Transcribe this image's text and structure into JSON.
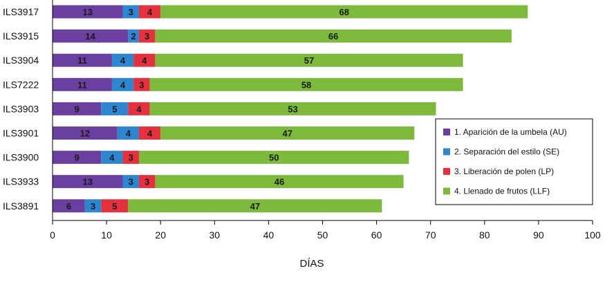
{
  "chart_data": {
    "type": "bar",
    "orientation": "horizontal",
    "stacked": true,
    "title": "",
    "xlabel": "DÍAS",
    "ylabel": "",
    "xlim": [
      0,
      100
    ],
    "xticks": [
      0,
      10,
      20,
      30,
      40,
      50,
      60,
      70,
      80,
      90,
      100
    ],
    "grid": false,
    "legend_position": "right",
    "categories": [
      "ILS3917",
      "ILS3915",
      "ILS3904",
      "ILS7222",
      "ILS3903",
      "ILS3901",
      "ILS3900",
      "ILS3933",
      "ILS3891"
    ],
    "series": [
      {
        "name": "1. Aparición de la umbela (AU)",
        "color": "#6b3fa0",
        "values": [
          13,
          14,
          11,
          11,
          9,
          12,
          9,
          13,
          6
        ]
      },
      {
        "name": "2. Separación del estilo (SE)",
        "color": "#2e86d1",
        "values": [
          3,
          2,
          4,
          4,
          5,
          4,
          4,
          3,
          3
        ]
      },
      {
        "name": "3. Liberación de polen (LP)",
        "color": "#e5303e",
        "values": [
          4,
          3,
          4,
          3,
          4,
          4,
          3,
          3,
          5
        ]
      },
      {
        "name": "4. Llenado de frutos (LLF)",
        "color": "#7dba3c",
        "values": [
          68,
          66,
          57,
          58,
          53,
          47,
          50,
          46,
          47
        ]
      }
    ]
  }
}
